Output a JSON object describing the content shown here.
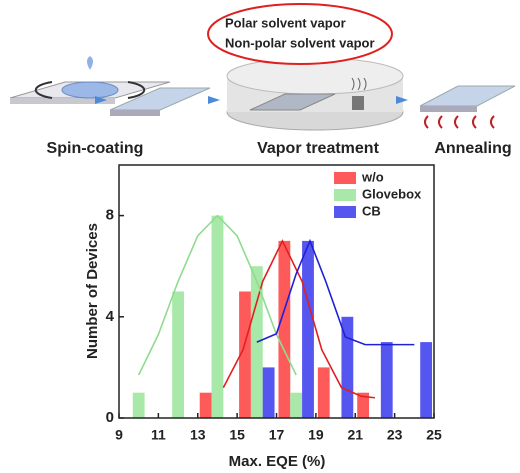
{
  "diagram": {
    "bubble_lines": [
      "Polar solvent vapor",
      "Non-polar solvent vapor"
    ],
    "steps": [
      "Spin-coating",
      "Vapor treatment",
      "Annealing"
    ]
  },
  "chart_data": {
    "type": "bar",
    "xlabel": "Max. EQE (%)",
    "ylabel": "Number of Devices",
    "xlim": [
      9,
      25
    ],
    "xticks": [
      9,
      11,
      13,
      15,
      17,
      19,
      21,
      23,
      25
    ],
    "ylim": [
      0,
      10
    ],
    "yticks": [
      0,
      4,
      8
    ],
    "bar_width": 0.6,
    "legend": "top-right",
    "series": [
      {
        "name": "w/o",
        "color": "#ff5a5a",
        "line_color": "#e02020",
        "x": [
          13.4,
          15.4,
          17.4,
          19.4,
          21.4
        ],
        "values": [
          1,
          5,
          7,
          2,
          1
        ],
        "fit": {
          "x": [
            14.3,
            15.3,
            16.3,
            17.3,
            18.3,
            19.3,
            20.3,
            21.3,
            22.0
          ],
          "values": [
            1.2,
            2.7,
            5.4,
            7,
            5.4,
            2.7,
            1.2,
            0.86,
            0.8
          ]
        }
      },
      {
        "name": "Glovebox",
        "color": "#a8e8a8",
        "line_color": "#8fdc8f",
        "x": [
          10,
          12,
          14,
          16,
          18
        ],
        "values": [
          1,
          5,
          8,
          6,
          1
        ],
        "fit": {
          "x": [
            10,
            11,
            12,
            13,
            14,
            15,
            16,
            17,
            18
          ],
          "values": [
            1.7,
            3.3,
            5.4,
            7.2,
            8,
            7.2,
            5.4,
            3.3,
            1.7
          ]
        }
      },
      {
        "name": "CB",
        "color": "#5555f0",
        "line_color": "#2020d8",
        "x": [
          16.6,
          18.6,
          20.6,
          22.6,
          24.6
        ],
        "values": [
          2,
          7,
          4,
          3,
          3
        ],
        "fit": {
          "x": [
            16,
            17,
            18,
            18.7,
            19.5,
            20.5,
            21.5,
            24
          ],
          "values": [
            3,
            3.33,
            5.7,
            7,
            5.4,
            3.2,
            2.9,
            2.9
          ]
        }
      }
    ]
  }
}
